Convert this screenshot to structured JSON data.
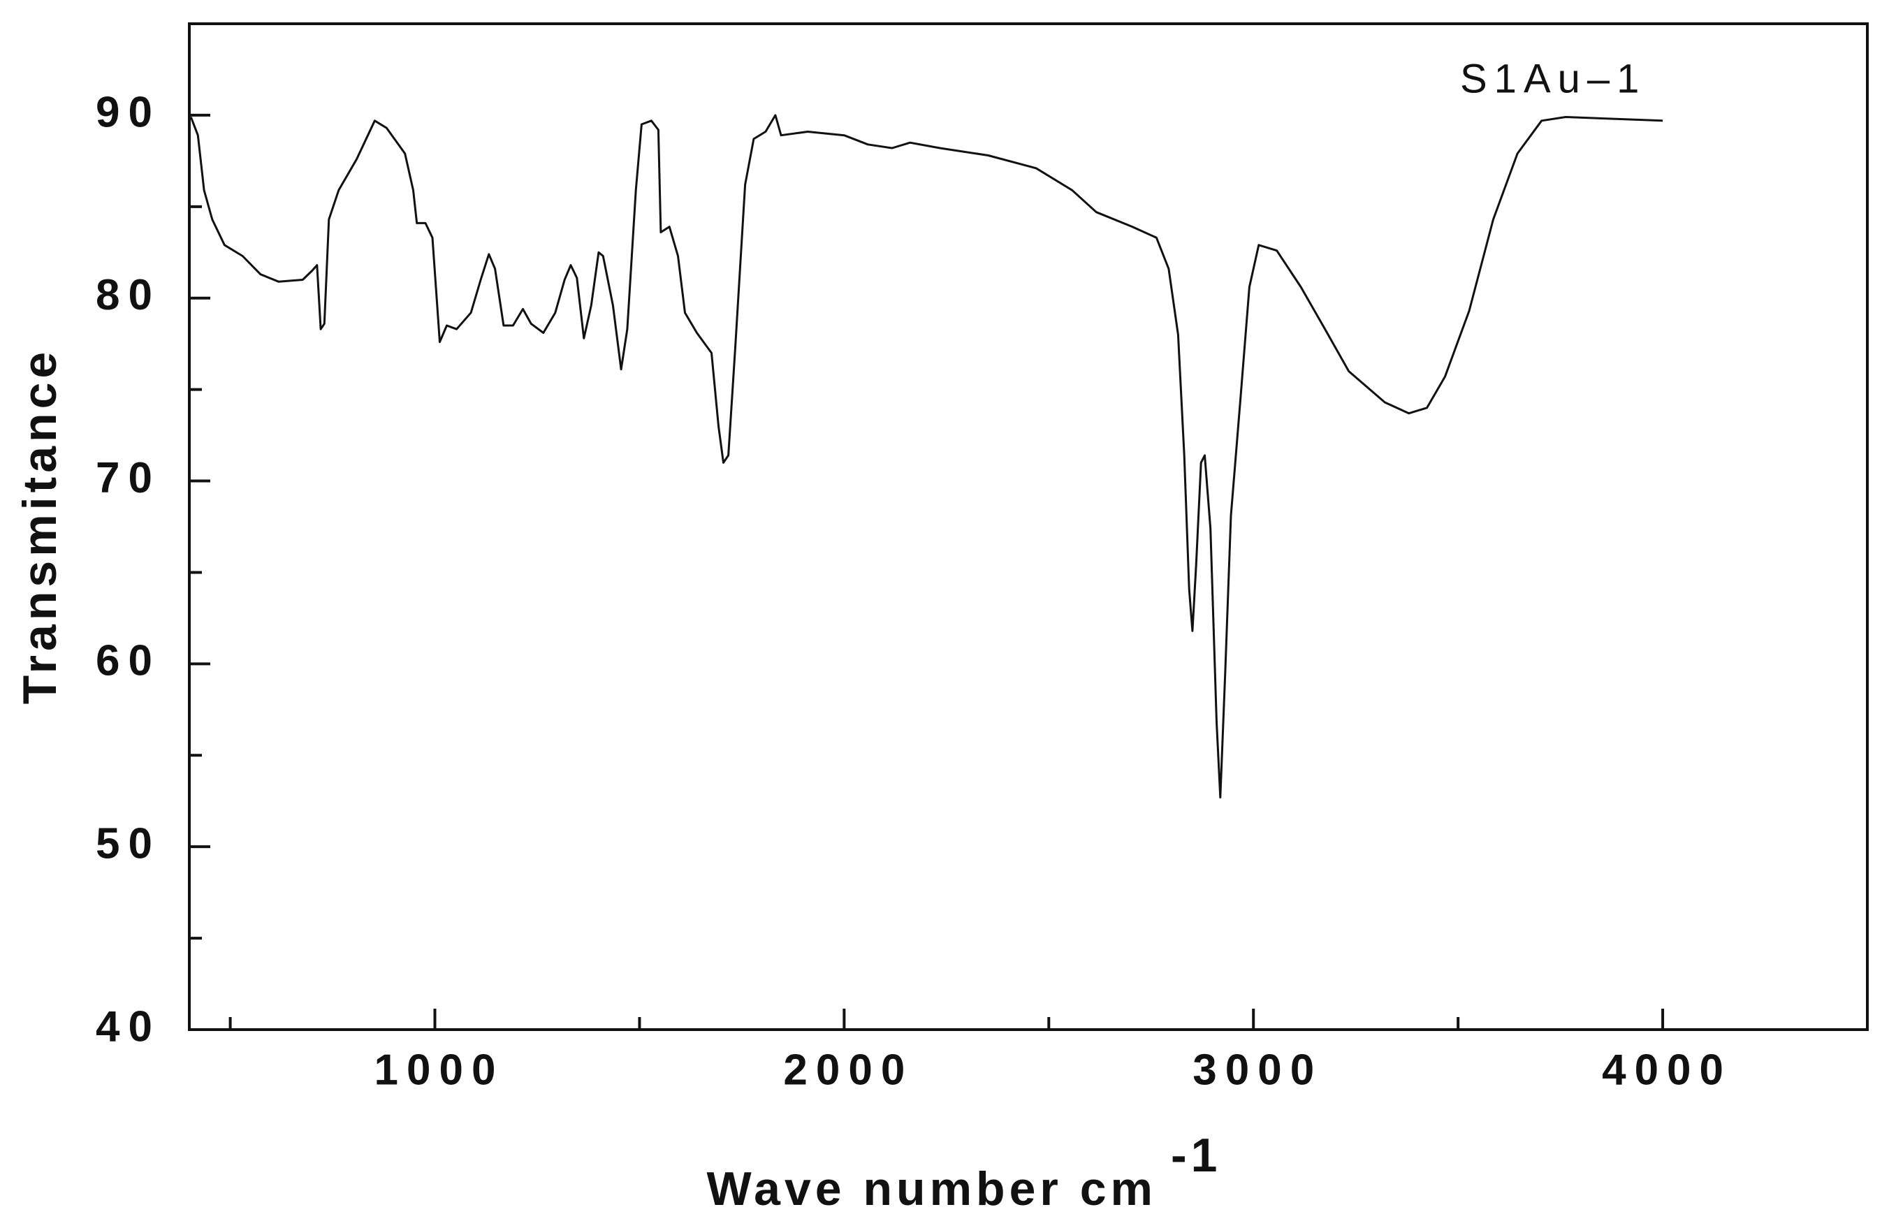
{
  "chart_data": {
    "type": "line",
    "xlabel": "Wave number cm",
    "xlabel_superscript": "-1",
    "ylabel": "Transmitance",
    "annotation": "S1Au–1",
    "xlim": [
      400,
      4500
    ],
    "ylim": [
      40,
      95
    ],
    "xticks": [
      1000,
      2000,
      3000,
      4000
    ],
    "xminor": [
      500,
      1500,
      2500,
      3500
    ],
    "yticks": [
      40,
      50,
      60,
      70,
      80,
      90
    ],
    "yminor": [
      45,
      55,
      65,
      75,
      85
    ],
    "x": [
      404,
      421,
      436,
      456,
      486,
      530,
      574,
      618,
      677,
      700,
      712,
      721,
      730,
      741,
      765,
      809,
      853,
      882,
      927,
      947,
      956,
      977,
      994,
      1012,
      1029,
      1053,
      1088,
      1112,
      1132,
      1147,
      1168,
      1191,
      1215,
      1235,
      1265,
      1294,
      1317,
      1332,
      1347,
      1364,
      1382,
      1400,
      1411,
      1435,
      1455,
      1470,
      1491,
      1505,
      1529,
      1546,
      1552,
      1573,
      1594,
      1611,
      1640,
      1676,
      1693,
      1705,
      1717,
      1734,
      1758,
      1779,
      1808,
      1832,
      1846,
      1911,
      2000,
      2058,
      2117,
      2161,
      2234,
      2352,
      2469,
      2557,
      2616,
      2704,
      2763,
      2793,
      2816,
      2831,
      2843,
      2851,
      2860,
      2872,
      2881,
      2895,
      2910,
      2919,
      2931,
      2945,
      2969,
      2990,
      3013,
      3057,
      3116,
      3175,
      3233,
      3321,
      3380,
      3424,
      3468,
      3527,
      3586,
      3645,
      3704,
      3763,
      4000
    ],
    "series": [
      {
        "color": "#111111",
        "values": [
          89.9,
          88.9,
          85.9,
          84.3,
          82.9,
          82.3,
          81.3,
          80.9,
          81.0,
          81.5,
          81.8,
          78.3,
          78.6,
          84.3,
          85.9,
          87.6,
          89.7,
          89.3,
          87.9,
          85.9,
          84.1,
          84.1,
          83.3,
          77.6,
          78.5,
          78.3,
          79.2,
          81.0,
          82.4,
          81.6,
          78.5,
          78.5,
          79.4,
          78.6,
          78.1,
          79.2,
          81.0,
          81.8,
          81.1,
          77.8,
          79.6,
          82.5,
          82.3,
          79.6,
          76.1,
          78.3,
          85.9,
          89.5,
          89.7,
          89.2,
          83.6,
          83.9,
          82.3,
          79.2,
          78.1,
          77.0,
          73.0,
          71.0,
          71.4,
          77.3,
          86.2,
          88.7,
          89.1,
          90.0,
          88.9,
          89.1,
          88.9,
          88.4,
          88.2,
          88.5,
          88.2,
          87.8,
          87.1,
          85.9,
          84.7,
          83.9,
          83.3,
          81.6,
          78.0,
          71.4,
          64.1,
          61.8,
          65.4,
          71.0,
          71.4,
          67.4,
          56.8,
          52.7,
          59.5,
          68.1,
          74.7,
          80.6,
          82.9,
          82.6,
          80.6,
          78.3,
          76.0,
          74.3,
          73.7,
          74.0,
          75.7,
          79.3,
          84.3,
          87.9,
          89.7,
          89.9,
          89.7
        ]
      }
    ]
  }
}
